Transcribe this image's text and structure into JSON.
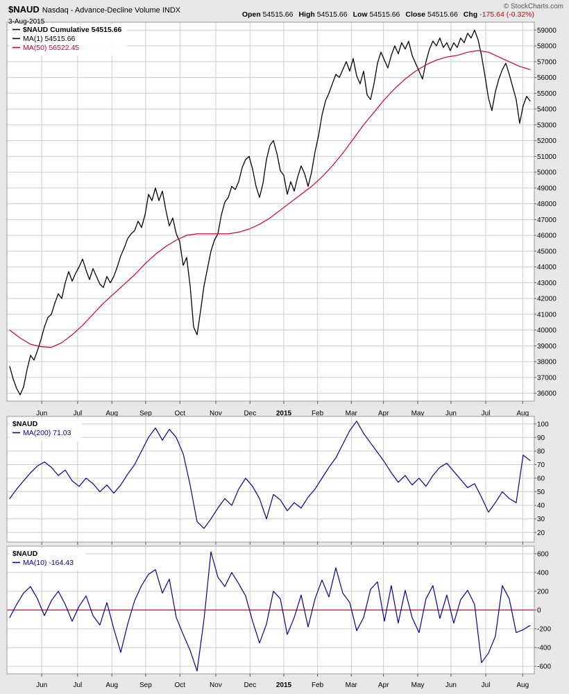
{
  "header": {
    "symbol": "$NAUD",
    "index_name": "Nasdaq - Advance-Decline Volume INDX",
    "date": "3-Aug-2015",
    "copyright": "© StockCharts.com",
    "quote_fields": [
      {
        "label": "Open",
        "value": "54515.66"
      },
      {
        "label": "High",
        "value": "54515.66"
      },
      {
        "label": "Low",
        "value": "54515.66"
      },
      {
        "label": "Close",
        "value": "54515.66"
      },
      {
        "label": "Chg",
        "value": "-175.64 (-0.32%)",
        "negative": true
      }
    ]
  },
  "chart_data": {
    "type": "line",
    "title": "$NAUD Nasdaq - Advance-Decline Volume INDX",
    "x_ticks": [
      {
        "pos": 6.6,
        "label": "Jun"
      },
      {
        "pos": 13.4,
        "label": "Jul"
      },
      {
        "pos": 19.9,
        "label": "Aug"
      },
      {
        "pos": 26.3,
        "label": "Sep"
      },
      {
        "pos": 32.8,
        "label": "Oct"
      },
      {
        "pos": 39.6,
        "label": "Nov"
      },
      {
        "pos": 46.1,
        "label": "Dec"
      },
      {
        "pos": 52.5,
        "label": "2015",
        "bold": true
      },
      {
        "pos": 58.9,
        "label": "Feb"
      },
      {
        "pos": 65.3,
        "label": "Mar"
      },
      {
        "pos": 71.4,
        "label": "Apr"
      },
      {
        "pos": 77.9,
        "label": "May"
      },
      {
        "pos": 84.2,
        "label": "Jun"
      },
      {
        "pos": 90.8,
        "label": "Jul"
      },
      {
        "pos": 97.8,
        "label": "Aug"
      }
    ],
    "panels": [
      {
        "name": "cumulative-price-panel",
        "ylim": [
          35500,
          59500
        ],
        "yticks": [
          36000,
          37000,
          38000,
          39000,
          40000,
          41000,
          42000,
          43000,
          44000,
          45000,
          46000,
          47000,
          48000,
          49000,
          50000,
          51000,
          52000,
          53000,
          54000,
          55000,
          56000,
          57000,
          58000,
          59000
        ],
        "legend": [
          {
            "text": "$NAUD Cumulative 54515.66",
            "color": "#000000",
            "bold": true,
            "swatch": "#000000"
          },
          {
            "text": "MA(1) 54515.66",
            "color": "#000000",
            "swatch": "#000000"
          },
          {
            "text": "MA(50) 56522.45",
            "color": "#cc0033",
            "swatch": "#cc0033"
          }
        ],
        "series": [
          {
            "name": "$NAUD Cumulative",
            "color": "#000000",
            "width": 1.3,
            "x_start": 0.53,
            "x_end": 99.2,
            "values": [
              37700,
              36900,
              36300,
              35900,
              36400,
              37500,
              38400,
              38100,
              38700,
              39400,
              40200,
              40800,
              41000,
              41700,
              42300,
              42000,
              43000,
              43700,
              43100,
              43600,
              44000,
              44500,
              43800,
              43200,
              43900,
              43400,
              42900,
              42700,
              43400,
              43000,
              43400,
              44000,
              44700,
              45200,
              45800,
              46100,
              46300,
              46900,
              46500,
              47300,
              48600,
              48200,
              49000,
              48200,
              48800,
              47600,
              46600,
              47100,
              46100,
              45600,
              44100,
              44600,
              42800,
              40200,
              39700,
              41200,
              42800,
              43900,
              45000,
              45700,
              46100,
              47300,
              48100,
              48400,
              49100,
              48900,
              49400,
              50300,
              50800,
              51000,
              50200,
              49100,
              48400,
              49300,
              50800,
              51700,
              52000,
              51200,
              50100,
              49800,
              48600,
              49400,
              48800,
              49700,
              50400,
              49900,
              49100,
              50000,
              51300,
              52300,
              53600,
              54500,
              55000,
              55600,
              56200,
              56000,
              56500,
              57000,
              56400,
              57200,
              56100,
              55600,
              56400,
              54900,
              54600,
              55600,
              56900,
              57600,
              57100,
              56600,
              57400,
              58000,
              57500,
              58200,
              57800,
              58300,
              57400,
              56900,
              56400,
              55900,
              57000,
              57800,
              58300,
              58000,
              58500,
              57900,
              58200,
              57700,
              58200,
              57900,
              58500,
              58200,
              58800,
              58500,
              59000,
              58400,
              57400,
              56100,
              54700,
              53900,
              55100,
              55900,
              56500,
              56900,
              56200,
              55400,
              54600,
              53100,
              54200,
              54800,
              54515
            ]
          },
          {
            "name": "MA(50)",
            "color": "#cc0033",
            "width": 1.2,
            "x_start": 0.53,
            "x_end": 99.2,
            "values": [
              40000,
              39500,
              39100,
              38950,
              38900,
              39200,
              39700,
              40300,
              41000,
              41700,
              42300,
              42900,
              43500,
              44200,
              44800,
              45300,
              45700,
              46000,
              46100,
              46100,
              46100,
              46100,
              46200,
              46400,
              46700,
              47100,
              47600,
              48100,
              48600,
              49100,
              49700,
              50400,
              51200,
              52100,
              53000,
              53800,
              54600,
              55300,
              55900,
              56400,
              56800,
              57100,
              57300,
              57400,
              57600,
              57700,
              57600,
              57300,
              57000,
              56700,
              56500
            ]
          }
        ]
      },
      {
        "name": "ma200-oscillator-panel",
        "ylim": [
          13,
          105.5
        ],
        "yticks": [
          20,
          30,
          40,
          50,
          60,
          70,
          80,
          90,
          100
        ],
        "legend": [
          {
            "text": "$NAUD",
            "color": "#000000",
            "bold": true
          },
          {
            "text": "MA(200) 71.03",
            "color": "#000099",
            "swatch": "#000099"
          }
        ],
        "series": [
          {
            "name": "MA(200)",
            "color": "#000099",
            "width": 1.2,
            "x_start": 0.53,
            "x_end": 99.2,
            "values": [
              45,
              52,
              58,
              64,
              69,
              72,
              68,
              62,
              66,
              58,
              54,
              60,
              56,
              50,
              55,
              49,
              55,
              63,
              70,
              80,
              90,
              97,
              88,
              96,
              90,
              78,
              55,
              28,
              23,
              30,
              38,
              45,
              40,
              52,
              60,
              54,
              45,
              30,
              48,
              44,
              36,
              42,
              38,
              46,
              52,
              60,
              68,
              75,
              85,
              95,
              102,
              93,
              86,
              79,
              72,
              64,
              57,
              62,
              55,
              60,
              54,
              62,
              68,
              71,
              65,
              59,
              53,
              56,
              46,
              35,
              42,
              50,
              45,
              42,
              77,
              73
            ]
          }
        ]
      },
      {
        "name": "ma10-oscillator-panel",
        "ylim": [
          -680,
          680
        ],
        "yticks": [
          600,
          400,
          200,
          0,
          -200,
          -400,
          -600
        ],
        "hlines": [
          {
            "value": 0,
            "color": "#cc0033"
          }
        ],
        "legend": [
          {
            "text": "$NAUD",
            "color": "#000000",
            "bold": true
          },
          {
            "text": "MA(10) -164.43",
            "color": "#000099",
            "swatch": "#000099"
          }
        ],
        "series": [
          {
            "name": "MA(10)",
            "color": "#000099",
            "width": 1.2,
            "x_start": 0.53,
            "x_end": 99.2,
            "values": [
              -80,
              60,
              180,
              250,
              120,
              -60,
              100,
              200,
              60,
              -120,
              40,
              150,
              -60,
              -160,
              80,
              -200,
              -450,
              -150,
              100,
              260,
              380,
              430,
              180,
              330,
              -80,
              -260,
              -430,
              -650,
              -100,
              620,
              350,
              250,
              400,
              280,
              150,
              -120,
              -350,
              -150,
              200,
              120,
              -260,
              -80,
              160,
              -180,
              120,
              320,
              140,
              450,
              180,
              80,
              -220,
              -80,
              220,
              300,
              -120,
              260,
              -140,
              210,
              -80,
              -240,
              120,
              260,
              -90,
              160,
              -140,
              110,
              210,
              60,
              -560,
              -460,
              -280,
              260,
              120,
              -240,
              -210,
              -164
            ]
          }
        ]
      }
    ]
  }
}
